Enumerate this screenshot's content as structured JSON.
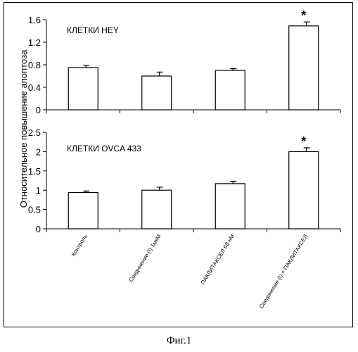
{
  "figure_caption": "Фиг.1",
  "chart_data": {
    "type": "bar",
    "ylabel": "Относительное повышение апоптоза",
    "categories": [
      "Контроль",
      "Соединение (I) 1мкМ",
      "ПАКЛИТАКСЕЛ 60 нМ",
      "Соединение (I) + ПАКЛИТАКСЕЛ"
    ],
    "panels": [
      {
        "title": "КЛЕТКИ HEY",
        "ylim": [
          0,
          1.6
        ],
        "yticks": [
          "0",
          "0.4",
          "0.8",
          "1.2",
          "1.6"
        ],
        "values": [
          0.75,
          0.6,
          0.7,
          1.49
        ],
        "errors": [
          0.04,
          0.07,
          0.03,
          0.07
        ],
        "significance": [
          "",
          "",
          "",
          "*"
        ]
      },
      {
        "title": "КЛЕТКИ OVCA 433",
        "ylim": [
          0,
          2.5
        ],
        "yticks": [
          "0",
          "0.5",
          "1",
          "1.5",
          "2",
          "2.5"
        ],
        "values": [
          0.94,
          1.0,
          1.17,
          2.0
        ],
        "errors": [
          0.04,
          0.08,
          0.06,
          0.1
        ],
        "significance": [
          "",
          "",
          "",
          "*"
        ]
      }
    ]
  }
}
